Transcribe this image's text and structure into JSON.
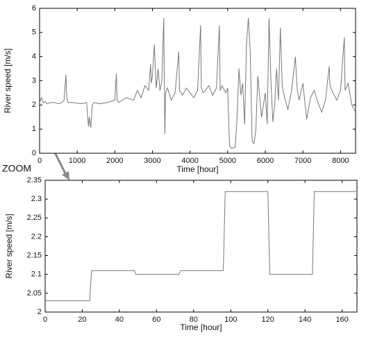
{
  "chart_data": [
    {
      "type": "line",
      "x_label": "Time [hour]",
      "y_label": "River speed [m/s]",
      "color": "#777777",
      "xlim": [
        0,
        8400
      ],
      "xticks": [
        0,
        1000,
        2000,
        3000,
        4000,
        5000,
        6000,
        7000,
        8000
      ],
      "ylim": [
        0,
        6
      ],
      "yticks": [
        0,
        1,
        2,
        3,
        4,
        5,
        6
      ],
      "x": [
        0,
        50,
        100,
        150,
        200,
        300,
        400,
        500,
        600,
        650,
        700,
        720,
        760,
        900,
        1100,
        1250,
        1300,
        1320,
        1360,
        1400,
        1450,
        1600,
        1800,
        2000,
        2040,
        2060,
        2100,
        2300,
        2500,
        2600,
        2700,
        2800,
        2900,
        2950,
        2970,
        3000,
        3050,
        3100,
        3150,
        3200,
        3250,
        3300,
        3330,
        3350,
        3400,
        3500,
        3600,
        3700,
        3720,
        3800,
        3900,
        4000,
        4100,
        4200,
        4280,
        4300,
        4350,
        4500,
        4600,
        4700,
        4780,
        4800,
        4850,
        4950,
        5000,
        5050,
        5100,
        5200,
        5250,
        5300,
        5350,
        5400,
        5450,
        5500,
        5550,
        5600,
        5650,
        5700,
        5750,
        5800,
        5900,
        6000,
        6050,
        6100,
        6150,
        6200,
        6250,
        6300,
        6350,
        6400,
        6450,
        6500,
        6600,
        6700,
        6800,
        6850,
        6900,
        7000,
        7100,
        7200,
        7300,
        7400,
        7500,
        7600,
        7700,
        7720,
        7800,
        7900,
        8000,
        8100,
        8120,
        8200,
        8300,
        8400
      ],
      "values": [
        2.1,
        2.3,
        2.1,
        2.15,
        2.05,
        2.1,
        2.1,
        2.05,
        2.1,
        2.2,
        3.25,
        2.3,
        2.1,
        2.1,
        2.05,
        2.1,
        1.1,
        1.5,
        1.05,
        2.0,
        2.1,
        2.05,
        2.1,
        2.2,
        3.3,
        2.2,
        2.1,
        2.3,
        2.2,
        2.6,
        2.3,
        2.8,
        2.6,
        3.7,
        2.9,
        3.2,
        4.5,
        2.7,
        3.5,
        2.6,
        3.0,
        5.6,
        0.8,
        2.5,
        2.7,
        2.2,
        2.5,
        4.2,
        2.6,
        2.4,
        2.7,
        2.5,
        2.3,
        2.6,
        5.3,
        2.7,
        2.5,
        2.8,
        2.4,
        2.7,
        5.3,
        2.6,
        2.8,
        2.5,
        2.7,
        0.3,
        0.2,
        0.25,
        1.5,
        3.5,
        2.4,
        2.9,
        1.2,
        4.5,
        5.6,
        4.2,
        0.5,
        0.4,
        1.0,
        3.2,
        1.5,
        2.5,
        1.2,
        5.6,
        3.0,
        1.3,
        2.0,
        3.5,
        2.2,
        5.2,
        2.8,
        2.4,
        1.8,
        2.6,
        4.0,
        2.6,
        2.2,
        2.9,
        1.4,
        2.3,
        2.6,
        2.1,
        1.7,
        2.2,
        3.6,
        2.8,
        2.5,
        2.2,
        2.6,
        4.8,
        2.6,
        2.9,
        2.0,
        1.7
      ],
      "annotation": "ZOOM"
    },
    {
      "type": "line",
      "x_label": "Time [hour]",
      "y_label": "River speed [m/s]",
      "color": "#777777",
      "xlim": [
        0,
        168
      ],
      "xticks": [
        0,
        20,
        40,
        60,
        80,
        100,
        120,
        140,
        160
      ],
      "ylim": [
        2,
        2.35
      ],
      "yticks": [
        2,
        2.05,
        2.1,
        2.15,
        2.2,
        2.25,
        2.3,
        2.35
      ],
      "x": [
        0,
        24,
        25,
        48,
        49,
        72,
        73,
        96,
        97,
        120,
        121,
        144,
        145,
        168
      ],
      "values": [
        2.03,
        2.03,
        2.11,
        2.11,
        2.1,
        2.1,
        2.11,
        2.11,
        2.32,
        2.32,
        2.1,
        2.1,
        2.32,
        2.32
      ]
    }
  ]
}
